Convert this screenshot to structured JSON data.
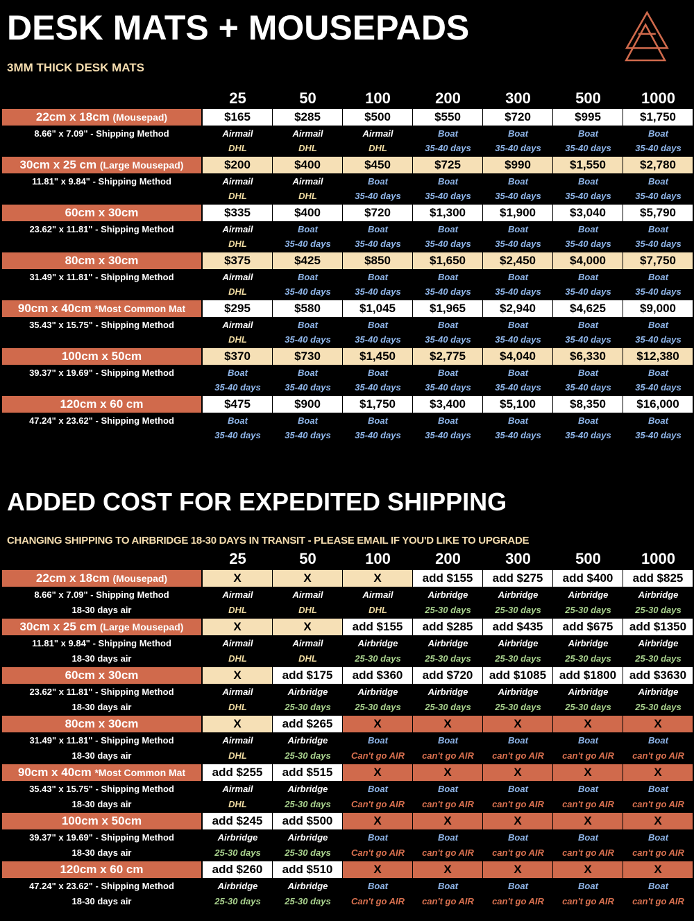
{
  "title": "DESK MATS + MOUSEPADS",
  "subtitle": "3MM THICK DESK MATS",
  "quantities": [
    "25",
    "50",
    "100",
    "200",
    "300",
    "500",
    "1000"
  ],
  "colors": {
    "accent": "#d06a4c",
    "cream": "#f6e0b6",
    "boat": "#8fb6ea",
    "dhl": "#f1dca2",
    "airbridge": "#a9d28e"
  },
  "method_suffix": " - Shipping Method",
  "table1": {
    "methods": {
      "A": [
        "Airmail",
        "DHL"
      ],
      "B": [
        "Boat",
        "35-40 days"
      ]
    },
    "rows": [
      {
        "size": "22cm x 18cm",
        "note": "(Mousepad)",
        "inches": "8.66\" x 7.09\"",
        "cells": [
          "$165",
          "$285",
          "$500",
          "$550",
          "$720",
          "$995",
          "$1,750"
        ],
        "m": "AAABBBB"
      },
      {
        "size": "30cm x 25 cm",
        "note": "(Large Mousepad)",
        "inches": "11.81\" x 9.84\"",
        "cells": [
          "$200",
          "$400",
          "$450",
          "$725",
          "$990",
          "$1,550",
          "$2,780"
        ],
        "m": "AABBBBB"
      },
      {
        "size": "60cm x 30cm",
        "note": "",
        "inches": "23.62\" x 11.81\"",
        "cells": [
          "$335",
          "$400",
          "$720",
          "$1,300",
          "$1,900",
          "$3,040",
          "$5,790"
        ],
        "m": "ABBBBBB"
      },
      {
        "size": "80cm x 30cm",
        "note": "",
        "inches": "31.49\" x 11.81\"",
        "cells": [
          "$375",
          "$425",
          "$850",
          "$1,650",
          "$2,450",
          "$4,000",
          "$7,750"
        ],
        "m": "ABBBBBB"
      },
      {
        "size": "90cm x 40cm",
        "note": "*Most Common Mat",
        "inches": "35.43\" x 15.75\"",
        "cells": [
          "$295",
          "$580",
          "$1,045",
          "$1,965",
          "$2,940",
          "$4,625",
          "$9,000"
        ],
        "m": "ABBBBBB"
      },
      {
        "size": "100cm x 50cm",
        "note": "",
        "inches": "39.37\" x 19.69\"",
        "cells": [
          "$370",
          "$730",
          "$1,450",
          "$2,775",
          "$4,040",
          "$6,330",
          "$12,380"
        ],
        "m": "BBBBBBB"
      },
      {
        "size": "120cm x 60 cm",
        "note": "",
        "inches": "47.24\" x 23.62\"",
        "cells": [
          "$475",
          "$900",
          "$1,750",
          "$3,400",
          "$5,100",
          "$8,350",
          "$16,000"
        ],
        "m": "BBBBBBB"
      }
    ]
  },
  "title2": "ADDED COST FOR EXPEDITED SHIPPING",
  "subtitle2": "CHANGING SHIPPING TO AIRBRIDGE 18-30 DAYS IN TRANSIT - PLEASE EMAIL IF YOU'D LIKE TO UPGRADE",
  "table2": {
    "transit_label": "18-30 days air",
    "methods": {
      "A": [
        "Airmail",
        "DHL"
      ],
      "R": [
        "Airbridge",
        "25-30 days"
      ],
      "C": [
        "Boat",
        "Can't go AIR"
      ],
      "c": [
        "Boat",
        "can't go AIR"
      ]
    },
    "rows": [
      {
        "size": "22cm x 18cm",
        "note": "(Mousepad)",
        "inches": "8.66\" x 7.09\"",
        "cells": [
          "X",
          "X",
          "X",
          "add $155",
          "add $275",
          "add $400",
          "add $825"
        ],
        "m": "AAARRRR"
      },
      {
        "size": "30cm x 25 cm",
        "note": "(Large Mousepad)",
        "inches": "11.81\" x 9.84\"",
        "cells": [
          "X",
          "X",
          "add $155",
          "add $285",
          "add $435",
          "add $675",
          "add $1350"
        ],
        "m": "AARRRRR"
      },
      {
        "size": "60cm x 30cm",
        "note": "",
        "inches": "23.62\" x 11.81\"",
        "cells": [
          "X",
          "add $175",
          "add $360",
          "add $720",
          "add $1085",
          "add $1800",
          "add $3630"
        ],
        "m": "ARRRRRR"
      },
      {
        "size": "80cm x 30cm",
        "note": "",
        "inches": "31.49\" x 11.81\"",
        "cells": [
          "X",
          "add $265",
          "X",
          "X",
          "X",
          "X",
          "X"
        ],
        "m": "ARCcccc"
      },
      {
        "size": "90cm x 40cm",
        "note": "*Most Common Mat",
        "inches": "35.43\" x 15.75\"",
        "cells": [
          "add $255",
          "add $515",
          "X",
          "X",
          "X",
          "X",
          "X"
        ],
        "m": "ARCcccc"
      },
      {
        "size": "100cm x 50cm",
        "note": "",
        "inches": "39.37\" x 19.69\"",
        "cells": [
          "add $245",
          "add $500",
          "X",
          "X",
          "X",
          "X",
          "X"
        ],
        "m": "RRCcccc"
      },
      {
        "size": "120cm x 60 cm",
        "note": "",
        "inches": "47.24\" x 23.62\"",
        "cells": [
          "add $260",
          "add $510",
          "X",
          "X",
          "X",
          "X",
          "X"
        ],
        "m": "RRCcccc"
      }
    ]
  }
}
